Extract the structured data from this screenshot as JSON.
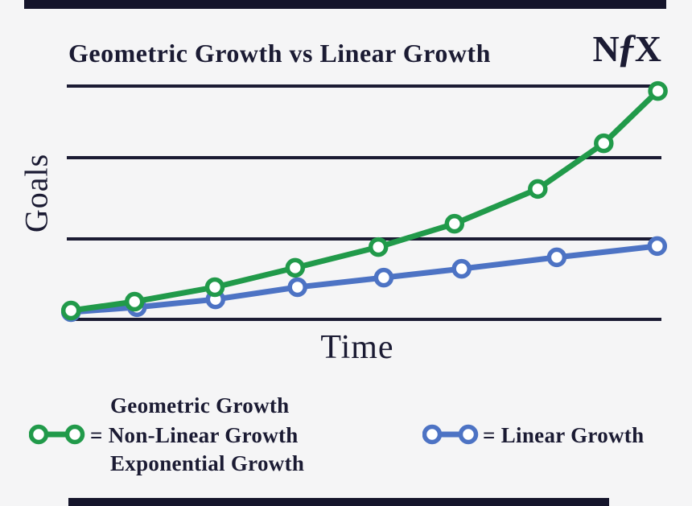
{
  "colors": {
    "navy": "#1b1b33",
    "green": "#219a4a",
    "blue": "#4d73c4",
    "background": "#f5f5f6",
    "marker_fill": "#ffffff",
    "frame_bar": "#15152b"
  },
  "header": {
    "title": "Geometric Growth vs Linear Growth",
    "logo": {
      "n": "N",
      "f": "ƒ",
      "x": "X"
    }
  },
  "axes": {
    "x_label": "Time",
    "y_label": "Goals"
  },
  "legend": {
    "geometric": {
      "line1": "Geometric Growth",
      "line2": "= Non-Linear Growth",
      "line3": "Exponential Growth"
    },
    "linear": {
      "label": "= Linear Growth"
    }
  },
  "chart_data": {
    "type": "line",
    "title": "Geometric Growth vs Linear Growth",
    "xlabel": "Time",
    "ylabel": "Goals",
    "xlim": [
      0,
      10
    ],
    "ylim": [
      0,
      100
    ],
    "grid": "horizontal gridlines at thirds plus baseline axis",
    "legend_position": "bottom",
    "gridlines_y": [
      34.5,
      69.3,
      100
    ],
    "series": [
      {
        "name": "Linear Growth",
        "color_key": "blue",
        "x": [
          0.07,
          1.18,
          2.5,
          3.88,
          5.33,
          6.64,
          8.24,
          9.93
        ],
        "y": [
          3.1,
          5.2,
          8.6,
          13.8,
          17.9,
          21.7,
          26.6,
          31.4
        ]
      },
      {
        "name": "Geometric Growth (Non-Linear / Exponential Growth)",
        "color_key": "green",
        "x": [
          0.07,
          1.14,
          2.49,
          3.84,
          5.24,
          6.52,
          7.92,
          9.03,
          9.94
        ],
        "y": [
          3.8,
          7.6,
          13.8,
          22.1,
          31.0,
          41.0,
          55.9,
          75.5,
          97.9
        ]
      }
    ]
  }
}
